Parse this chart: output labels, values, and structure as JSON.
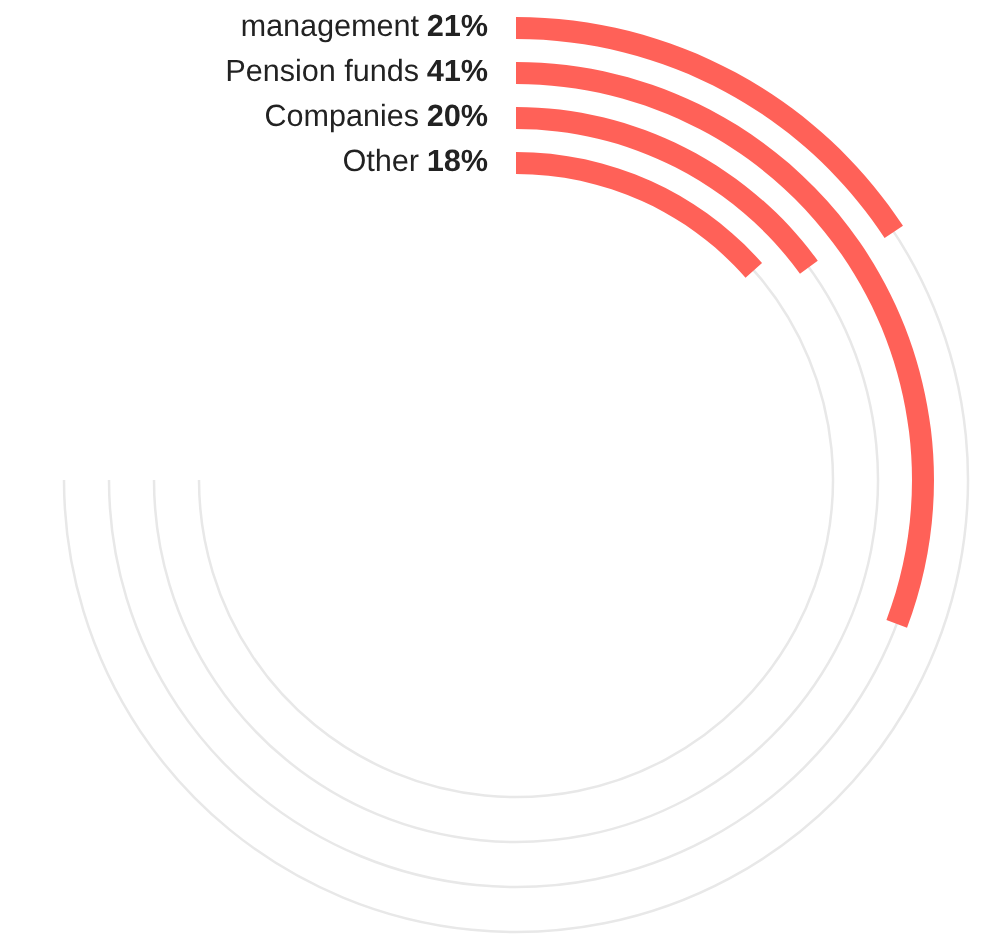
{
  "chart_data": {
    "type": "other",
    "categories": [
      "management",
      "Pension funds",
      "Companies",
      "Other"
    ],
    "values": [
      21,
      41,
      20,
      18
    ],
    "value_labels": [
      "21%",
      "41%",
      "20%",
      "18%"
    ],
    "color": "#ff6158"
  }
}
